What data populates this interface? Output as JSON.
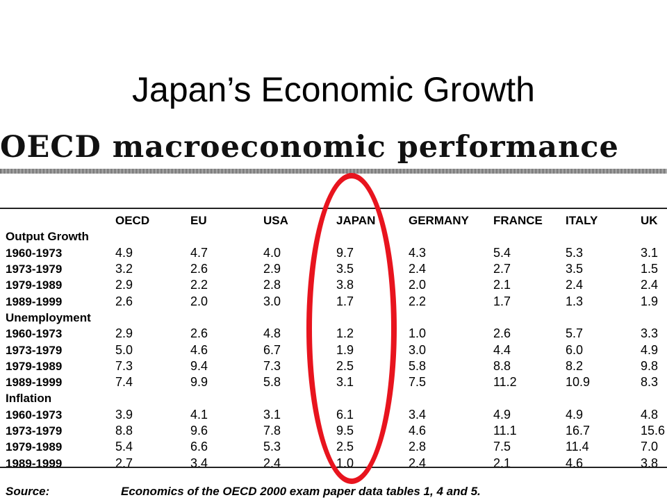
{
  "slide_title": "Japan’s Economic Growth",
  "figure_title": "OECD macroeconomic performance",
  "table": {
    "columns": [
      "OECD",
      "EU",
      "USA",
      "JAPAN",
      "GERMANY",
      "FRANCE",
      "ITALY",
      "UK"
    ],
    "sections": [
      {
        "name": "Output Growth",
        "rows": [
          {
            "period": "1960-1973",
            "values": [
              "4.9",
              "4.7",
              "4.0",
              "9.7",
              "4.3",
              "5.4",
              "5.3",
              "3.1"
            ]
          },
          {
            "period": "1973-1979",
            "values": [
              "3.2",
              "2.6",
              "2.9",
              "3.5",
              "2.4",
              "2.7",
              "3.5",
              "1.5"
            ]
          },
          {
            "period": "1979-1989",
            "values": [
              "2.9",
              "2.2",
              "2.8",
              "3.8",
              "2.0",
              "2.1",
              "2.4",
              "2.4"
            ]
          },
          {
            "period": "1989-1999",
            "values": [
              "2.6",
              "2.0",
              "3.0",
              "1.7",
              "2.2",
              "1.7",
              "1.3",
              "1.9"
            ]
          }
        ]
      },
      {
        "name": "Unemployment",
        "rows": [
          {
            "period": "1960-1973",
            "values": [
              "2.9",
              "2.6",
              "4.8",
              "1.2",
              "1.0",
              "2.6",
              "5.7",
              "3.3"
            ]
          },
          {
            "period": "1973-1979",
            "values": [
              "5.0",
              "4.6",
              "6.7",
              "1.9",
              "3.0",
              "4.4",
              "6.0",
              "4.9"
            ]
          },
          {
            "period": "1979-1989",
            "values": [
              "7.3",
              "9.4",
              "7.3",
              "2.5",
              "5.8",
              "8.8",
              "8.2",
              "9.8"
            ]
          },
          {
            "period": "1989-1999",
            "values": [
              "7.4",
              "9.9",
              "5.8",
              "3.1",
              "7.5",
              "11.2",
              "10.9",
              "8.3"
            ]
          }
        ]
      },
      {
        "name": "Inflation",
        "rows": [
          {
            "period": "1960-1973",
            "values": [
              "3.9",
              "4.1",
              "3.1",
              "6.1",
              "3.4",
              "4.9",
              "4.9",
              "4.8"
            ]
          },
          {
            "period": "1973-1979",
            "values": [
              "8.8",
              "9.6",
              "7.8",
              "9.5",
              "4.6",
              "11.1",
              "16.7",
              "15.6"
            ]
          },
          {
            "period": "1979-1989",
            "values": [
              "5.4",
              "6.6",
              "5.3",
              "2.5",
              "2.8",
              "7.5",
              "11.4",
              "7.0"
            ]
          },
          {
            "period": "1989-1999",
            "values": [
              "2.7",
              "3.4",
              "2.4",
              "1.0",
              "2.4",
              "2.1",
              "4.6",
              "3.8"
            ]
          }
        ]
      }
    ]
  },
  "source": {
    "label": "Source:",
    "text": "Economics of the OECD 2000 exam paper data tables 1, 4 and 5."
  },
  "highlight": {
    "column": "JAPAN",
    "color": "#e8141e"
  }
}
